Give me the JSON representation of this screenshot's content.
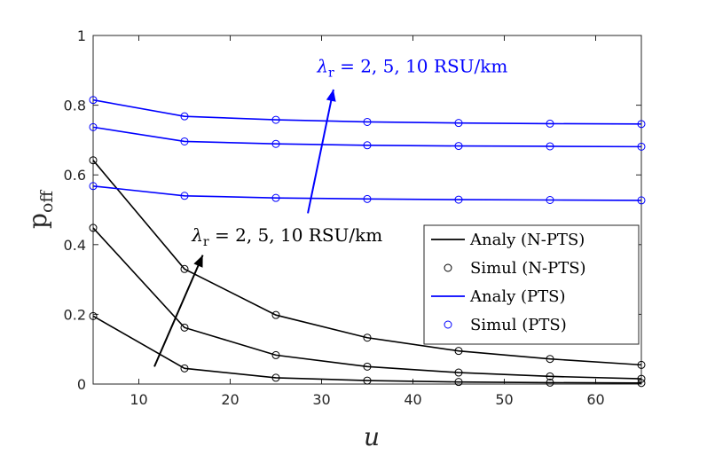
{
  "chart_data": {
    "type": "line",
    "xlabel": "u",
    "ylabel": "p_off",
    "ylabel_main": "p",
    "ylabel_sub": "off",
    "xlim": [
      5,
      65
    ],
    "ylim": [
      0,
      1
    ],
    "xticks": [
      10,
      20,
      30,
      40,
      50,
      60
    ],
    "yticks": [
      0,
      0.2,
      0.4,
      0.6,
      0.8,
      1
    ],
    "ytick_labels": [
      "0",
      "0.2",
      "0.4",
      "0.6",
      "0.8",
      "1"
    ],
    "grid": false,
    "x": [
      5,
      15,
      25,
      35,
      45,
      55,
      65
    ],
    "series": [
      {
        "name": "N-PTS, λr = 2",
        "group": "N-PTS",
        "color": "#000000",
        "values": [
          0.195,
          0.045,
          0.018,
          0.01,
          0.006,
          0.004,
          0.003
        ]
      },
      {
        "name": "N-PTS, λr = 5",
        "group": "N-PTS",
        "color": "#000000",
        "values": [
          0.448,
          0.162,
          0.083,
          0.05,
          0.033,
          0.022,
          0.015
        ]
      },
      {
        "name": "N-PTS, λr = 10",
        "group": "N-PTS",
        "color": "#000000",
        "values": [
          0.642,
          0.33,
          0.198,
          0.133,
          0.095,
          0.072,
          0.055
        ]
      },
      {
        "name": "PTS, λr = 2",
        "group": "PTS",
        "color": "#0000ff",
        "values": [
          0.568,
          0.54,
          0.534,
          0.531,
          0.529,
          0.528,
          0.527
        ]
      },
      {
        "name": "PTS, λr = 5",
        "group": "PTS",
        "color": "#0000ff",
        "values": [
          0.737,
          0.696,
          0.689,
          0.685,
          0.683,
          0.682,
          0.681
        ]
      },
      {
        "name": "PTS, λr = 10",
        "group": "PTS",
        "color": "#0000ff",
        "values": [
          0.815,
          0.768,
          0.758,
          0.752,
          0.749,
          0.747,
          0.746
        ]
      }
    ],
    "legend": {
      "placement": "right-center",
      "entries": [
        {
          "label": "Analy (N-PTS)",
          "kind": "line",
          "color": "#000000"
        },
        {
          "label": "Simul (N-PTS)",
          "kind": "marker",
          "color": "#000000"
        },
        {
          "label": "Analy (PTS)",
          "kind": "line",
          "color": "#0000ff"
        },
        {
          "label": "Simul (PTS)",
          "kind": "marker",
          "color": "#0000ff"
        }
      ]
    },
    "annotations": [
      {
        "id": "pts",
        "text_sym": "λ",
        "text_sub": "r",
        "text_rest": " = 2, 5, 10 RSU/km",
        "color": "#0000ff",
        "arrow_from": [
          28.5,
          0.49
        ],
        "arrow_to": [
          31.3,
          0.845
        ],
        "text_at": [
          29.5,
          0.895
        ]
      },
      {
        "id": "npts",
        "text_sym": "λ",
        "text_sub": "r",
        "text_rest": " = 2, 5, 10 RSU/km",
        "color": "#000000",
        "arrow_from": [
          11.7,
          0.05
        ],
        "arrow_to": [
          17.0,
          0.37
        ],
        "text_at": [
          15.8,
          0.41
        ]
      }
    ]
  }
}
